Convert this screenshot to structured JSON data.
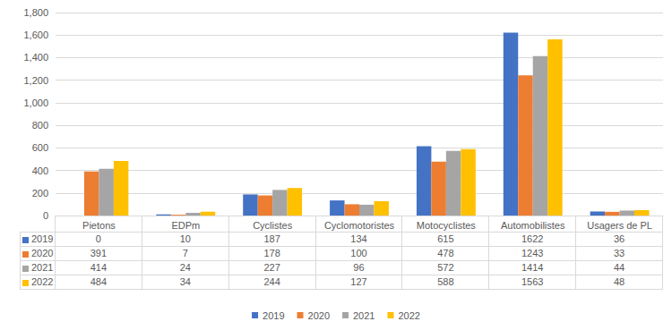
{
  "chart_data": {
    "type": "bar",
    "categories": [
      "Pietons",
      "EDPm",
      "Cyclistes",
      "Cyclomotoristes",
      "Motocyclistes",
      "Automobilistes",
      "Usagers de PL"
    ],
    "series": [
      {
        "name": "2019",
        "color": "#4472c4",
        "values": [
          0,
          10,
          187,
          134,
          615,
          1622,
          36
        ]
      },
      {
        "name": "2020",
        "color": "#ed7d31",
        "values": [
          391,
          7,
          178,
          100,
          478,
          1243,
          33
        ]
      },
      {
        "name": "2021",
        "color": "#a5a5a5",
        "values": [
          414,
          24,
          227,
          96,
          572,
          1414,
          44
        ]
      },
      {
        "name": "2022",
        "color": "#ffc000",
        "values": [
          484,
          34,
          244,
          127,
          588,
          1563,
          48
        ]
      }
    ],
    "ylim": [
      0,
      1800
    ],
    "yticks": [
      0,
      200,
      400,
      600,
      800,
      1000,
      1200,
      1400,
      1600,
      1800
    ],
    "grid": true,
    "legend": "bottom"
  }
}
